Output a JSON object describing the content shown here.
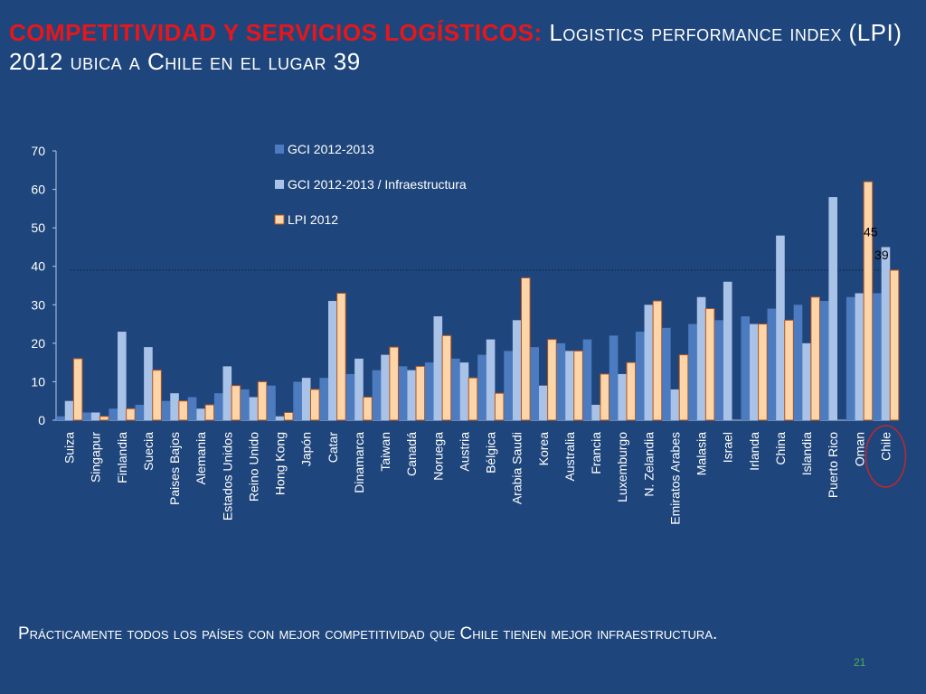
{
  "slide": {
    "title_red": "COMPETITIVIDAD Y SERVICIOS LOGÍSTICOS:",
    "title_rest": "Logistics performance index (LPI) 2012 ubica a Chile en el lugar 39",
    "footer": "Prácticamente todos los países con mejor competitividad  que Chile tienen mejor infraestructura.",
    "page_number": "21"
  },
  "colors": {
    "background": "#1f467c",
    "gci": "#4c7bbf",
    "infra": "#a9c2e8",
    "lpi": "#fcd5a8",
    "lpi_border": "#b3541e",
    "title_red": "#e8161a",
    "highlight_circle": "#c0272d"
  },
  "chart_data": {
    "type": "bar",
    "categories": [
      "Suiza",
      "Singapur",
      "Finlandia",
      "Suecia",
      "Paises Bajos",
      "Alemania",
      "Estados Unidos",
      "Reino Unido",
      "Hong Kong",
      "Japón",
      "Catar",
      "Dinamarca",
      "Taiwan",
      "Canadá",
      "Noruega",
      "Austria",
      "Bélgica",
      "Arabia  Saudi",
      "Korea",
      "Australia",
      "Francia",
      "Luxemburgo",
      "N. Zelandia",
      "Emiratos Arabes",
      "Malasia",
      "Israel",
      "Irlanda",
      "China",
      "Islandia",
      "Puerto Rico",
      "Oman",
      "Chile"
    ],
    "series": [
      {
        "name": "GCI 2012-2013",
        "values": [
          1,
          2,
          3,
          4,
          5,
          6,
          7,
          8,
          9,
          10,
          11,
          12,
          13,
          14,
          15,
          16,
          17,
          18,
          19,
          20,
          21,
          22,
          23,
          24,
          25,
          26,
          27,
          29,
          30,
          31,
          32,
          33
        ]
      },
      {
        "name": "GCI 2012-2013 / Infraestructura",
        "values": [
          5,
          2,
          23,
          19,
          7,
          3,
          14,
          6,
          1,
          11,
          31,
          16,
          17,
          13,
          27,
          15,
          21,
          26,
          9,
          18,
          4,
          12,
          30,
          8,
          32,
          36,
          25,
          48,
          20,
          58,
          33,
          45
        ]
      },
      {
        "name": "LPI 2012",
        "values": [
          16,
          1,
          3,
          13,
          5,
          4,
          9,
          10,
          2,
          8,
          33,
          6,
          19,
          14,
          22,
          11,
          7,
          37,
          21,
          18,
          12,
          15,
          31,
          17,
          29,
          0,
          25,
          26,
          32,
          0,
          62,
          39
        ]
      }
    ],
    "ylim": [
      0,
      70
    ],
    "yticks": [
      0,
      10,
      20,
      30,
      40,
      50,
      60,
      70
    ],
    "reference_line": 39,
    "data_labels": [
      "45",
      "39"
    ],
    "legend": "top-center",
    "highlight": "Chile"
  }
}
